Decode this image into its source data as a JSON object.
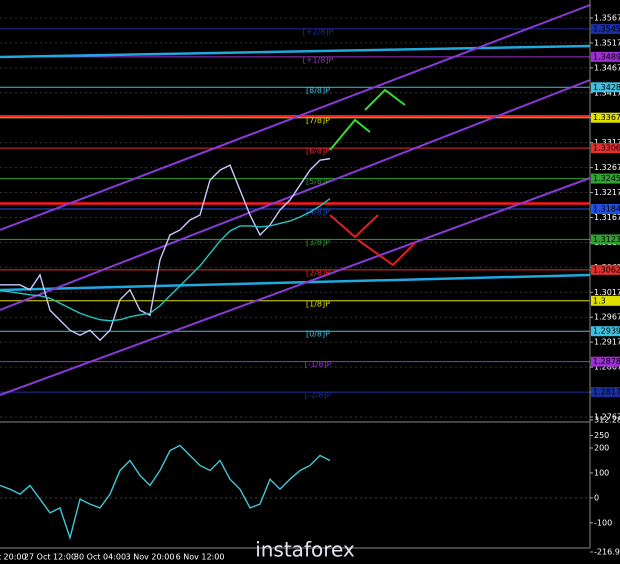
{
  "chart_data": [
    {
      "type": "line",
      "watermark": "instaforex",
      "categories": [
        null,
        "ct 20:00",
        null,
        null,
        null,
        "27 Oct 12:00",
        null,
        null,
        null,
        null,
        "30 Oct 04:00",
        null,
        null,
        null,
        null,
        "3 Nov 20:00",
        null,
        null,
        null,
        null,
        "6 Nov 12:00",
        null,
        null,
        null,
        null,
        null,
        null,
        null,
        null,
        null,
        null,
        null,
        null,
        null
      ],
      "series": [
        {
          "color": "#c8c8ff",
          "values": [
            1.3032,
            1.3032,
            1.3032,
            1.3022,
            1.3052,
            1.2981,
            1.2961,
            1.2941,
            1.2931,
            1.2941,
            1.2921,
            1.2941,
            1.3002,
            1.3022,
            1.2981,
            1.2971,
            1.3082,
            1.3132,
            1.3142,
            1.3162,
            1.3172,
            1.3242,
            1.3262,
            1.3272,
            1.3222,
            1.3172,
            1.3132,
            1.3152,
            1.3182,
            1.3202,
            1.3232,
            1.3262,
            1.3282,
            1.3285
          ]
        },
        {
          "color": "#20c8c8",
          "values": [
            1.302,
            1.3018,
            1.3015,
            1.3012,
            1.301,
            1.3005,
            1.2995,
            1.2985,
            1.2975,
            1.2968,
            1.2962,
            1.296,
            1.2962,
            1.2968,
            1.2972,
            1.2975,
            1.299,
            1.301,
            1.303,
            1.305,
            1.307,
            1.3095,
            1.312,
            1.314,
            1.315,
            1.315,
            1.3148,
            1.315,
            1.3155,
            1.316,
            1.3168,
            1.3178,
            1.319,
            1.3205
          ]
        }
      ],
      "ylim": [
        1.2757,
        1.3603
      ],
      "yticks": [
        1.2767,
        1.2817,
        1.2867,
        1.2917,
        1.2967,
        1.3017,
        1.3067,
        1.3117,
        1.3167,
        1.3217,
        1.3267,
        1.3317,
        1.3367,
        1.3417,
        1.3467,
        1.3517,
        1.3567
      ],
      "grid": true,
      "levels": [
        {
          "name": "[+2/8]P",
          "value": 1.3545,
          "color": "#1a2fa0"
        },
        {
          "name": "[+1/8]P",
          "value": 1.3489,
          "color": "#9b30d0"
        },
        {
          "name": "[8/8]P",
          "value": 1.3428,
          "color": "#40c0e0"
        },
        {
          "name": "[7/8]P",
          "value": 1.3367,
          "color": "#e0e000"
        },
        {
          "name": "[6/8]P",
          "value": 1.3306,
          "color": "#e03030"
        },
        {
          "name": "[5/8]P",
          "value": 1.3245,
          "color": "#30a030"
        },
        {
          "name": "[4/8]P",
          "value": 1.3184,
          "color": "#2050e0"
        },
        {
          "name": "[3/8]P",
          "value": 1.3123,
          "color": "#30a030"
        },
        {
          "name": "[2/8]P",
          "value": 1.3062,
          "color": "#e03030"
        },
        {
          "name": "[1/8]P",
          "value": 1.3,
          "color": "#e0e000"
        },
        {
          "name": "[0/8]P",
          "value": 1.2939,
          "color": "#40c0e0"
        },
        {
          "name": "[-1/8]P",
          "value": 1.2878,
          "color": "#9b30d0"
        },
        {
          "name": "[-2/8]P",
          "value": 1.2817,
          "color": "#1a2fa0"
        }
      ],
      "red_levels": [
        1.337,
        1.3195
      ]
    },
    {
      "type": "line",
      "series": [
        {
          "color": "#40c8d8",
          "values": [
            50,
            35,
            15,
            50,
            -5,
            -60,
            -40,
            -160,
            -5,
            -25,
            -40,
            15,
            110,
            150,
            90,
            50,
            110,
            190,
            210,
            170,
            130,
            110,
            150,
            75,
            35,
            -40,
            -25,
            75,
            35,
            75,
            110,
            130,
            170,
            150
          ]
        }
      ],
      "ylim": [
        -216.914,
        312.2872
      ],
      "yticks": [
        312.2872,
        250,
        200,
        100,
        0,
        -100,
        -216.914
      ]
    }
  ]
}
